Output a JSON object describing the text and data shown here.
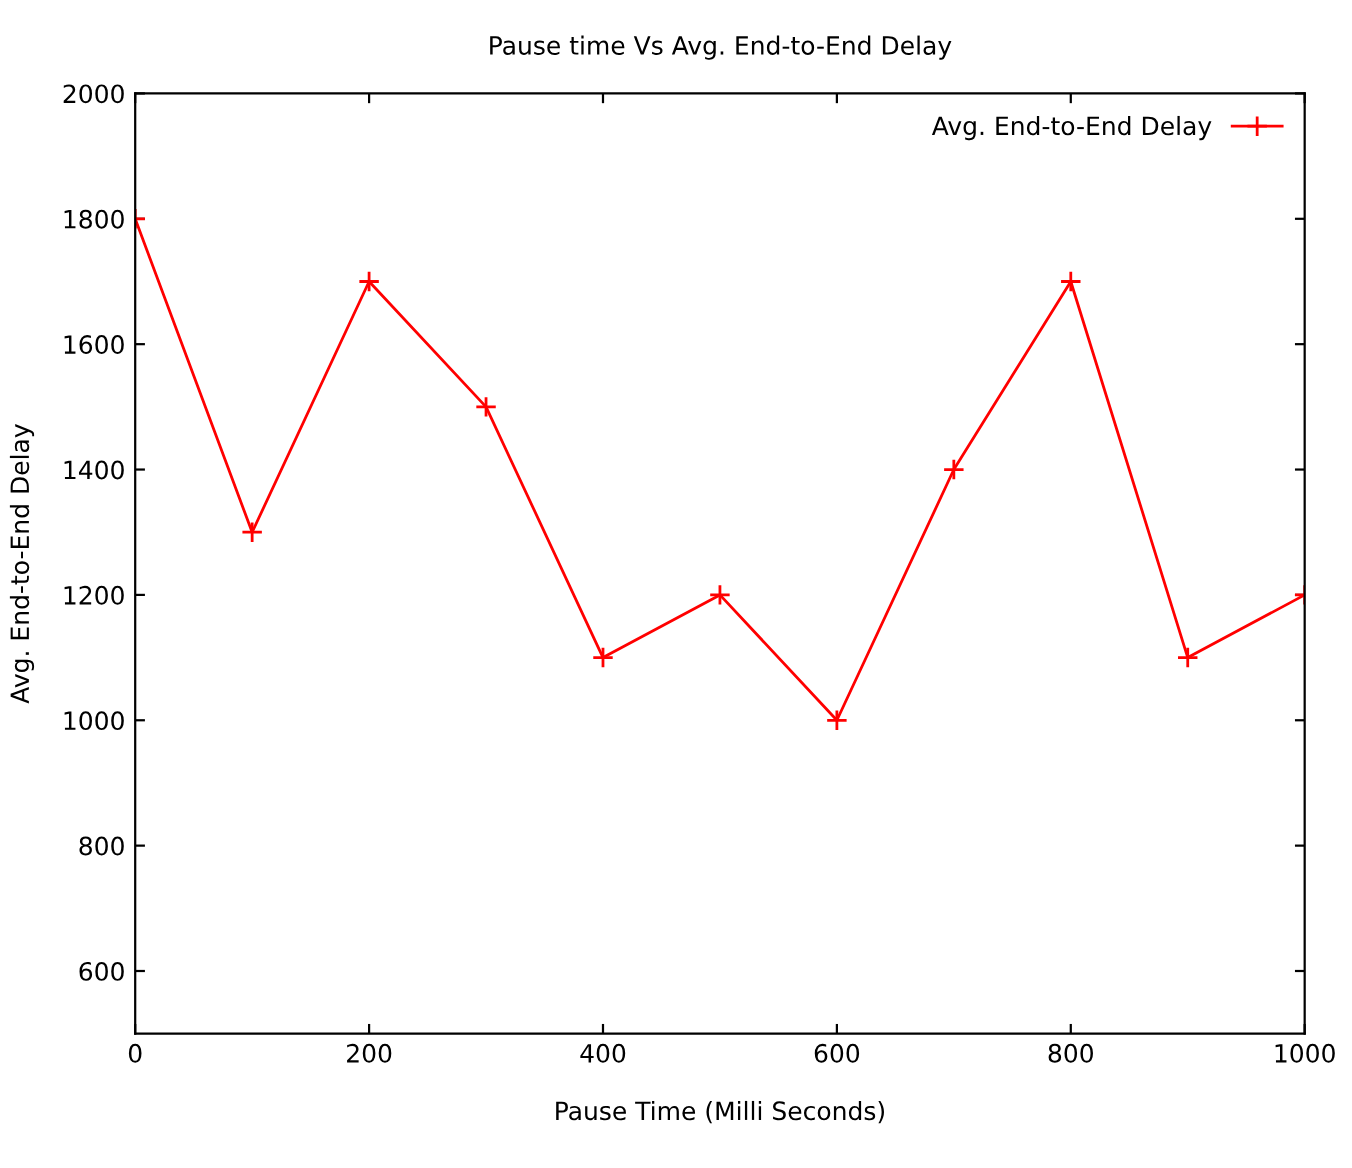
{
  "chart_data": {
    "type": "line",
    "title": "Pause time Vs Avg. End-to-End Delay",
    "xlabel": "Pause Time (Milli Seconds)",
    "ylabel": "Avg. End-to-End Delay",
    "x": [
      0,
      100,
      200,
      300,
      400,
      500,
      600,
      700,
      800,
      900,
      1000
    ],
    "series": [
      {
        "name": "Avg. End-to-End Delay",
        "color": "#ff0000",
        "values": [
          1800,
          1300,
          1700,
          1500,
          1100,
          1200,
          1000,
          1400,
          1700,
          1100,
          1200
        ]
      }
    ],
    "xlim": [
      0,
      1000
    ],
    "ylim": [
      500,
      2000
    ],
    "xticks": [
      0,
      200,
      400,
      600,
      800,
      1000
    ],
    "yticks": [
      600,
      800,
      1000,
      1200,
      1400,
      1600,
      1800,
      2000
    ],
    "grid": false,
    "legend": "top right",
    "marker": "cross",
    "line_style": "solid"
  }
}
